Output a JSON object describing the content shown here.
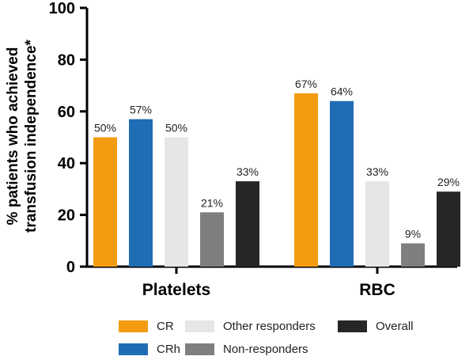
{
  "chart_data": {
    "type": "bar",
    "ylabel_line1": "% patients who achieved",
    "ylabel_line2": "transfusion independence*",
    "ylim": [
      0,
      100
    ],
    "yticks": [
      0,
      20,
      40,
      60,
      80,
      100
    ],
    "categories": [
      "Platelets",
      "RBC"
    ],
    "series": [
      {
        "name": "CR",
        "color": "#f39c12",
        "values": [
          50,
          67
        ],
        "labels": [
          "50%",
          "67%"
        ]
      },
      {
        "name": "CRh",
        "color": "#1f6db5",
        "values": [
          57,
          64
        ],
        "labels": [
          "57%",
          "64%"
        ]
      },
      {
        "name": "Other responders",
        "color": "#e6e6e6",
        "values": [
          50,
          33
        ],
        "labels": [
          "50%",
          "33%"
        ]
      },
      {
        "name": "Non-responders",
        "color": "#7f7f7f",
        "values": [
          21,
          9
        ],
        "labels": [
          "21%",
          "9%"
        ]
      },
      {
        "name": "Overall",
        "color": "#262626",
        "values": [
          33,
          29
        ],
        "labels": [
          "33%",
          "29%"
        ]
      }
    ],
    "legend_position": "bottom",
    "grid": false
  }
}
